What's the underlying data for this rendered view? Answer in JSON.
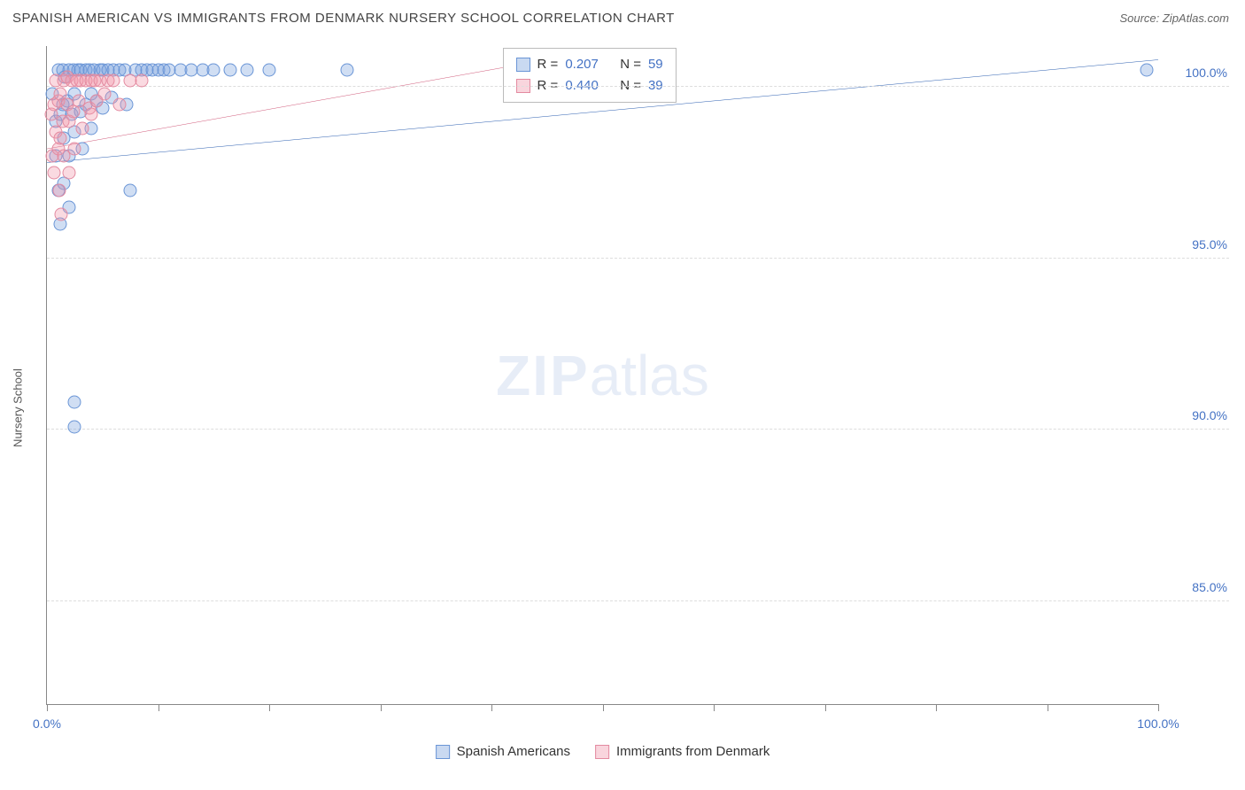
{
  "header": {
    "title": "SPANISH AMERICAN VS IMMIGRANTS FROM DENMARK NURSERY SCHOOL CORRELATION CHART",
    "source": "Source: ZipAtlas.com"
  },
  "chart": {
    "type": "scatter",
    "ylabel": "Nursery School",
    "xlim": [
      0,
      100
    ],
    "ylim": [
      82,
      101.2
    ],
    "yticks": [
      {
        "value": 100,
        "label": "100.0%"
      },
      {
        "value": 95,
        "label": "95.0%"
      },
      {
        "value": 90,
        "label": "90.0%"
      },
      {
        "value": 85,
        "label": "85.0%"
      }
    ],
    "xtick_positions": [
      0,
      10,
      20,
      30,
      40,
      50,
      60,
      70,
      80,
      90,
      100
    ],
    "xtick_labels": [
      {
        "value": 0,
        "label": "0.0%"
      },
      {
        "value": 100,
        "label": "100.0%"
      }
    ],
    "background_color": "#ffffff",
    "grid_color": "#dddddd",
    "axis_color": "#888888",
    "label_fontsize": 14,
    "series": [
      {
        "name": "Spanish Americans",
        "color_fill": "rgba(120,160,220,0.35)",
        "color_stroke": "#6a95d6",
        "marker_size": 15,
        "r": "0.207",
        "n": "59",
        "trend": {
          "x0": 0,
          "y0": 97.8,
          "x1": 100,
          "y1": 100.8,
          "color": "#2a5db0",
          "width": 2
        },
        "points": [
          [
            0.5,
            99.8
          ],
          [
            0.8,
            99.0
          ],
          [
            0.8,
            98.0
          ],
          [
            1.0,
            100.5
          ],
          [
            1.0,
            97.0
          ],
          [
            1.2,
            99.2
          ],
          [
            1.2,
            96.0
          ],
          [
            1.4,
            100.5
          ],
          [
            1.4,
            99.5
          ],
          [
            1.5,
            98.5
          ],
          [
            1.5,
            97.2
          ],
          [
            1.6,
            100.3
          ],
          [
            1.8,
            99.6
          ],
          [
            2.0,
            100.5
          ],
          [
            2.0,
            98.0
          ],
          [
            2.0,
            96.5
          ],
          [
            2.2,
            99.2
          ],
          [
            2.4,
            100.5
          ],
          [
            2.5,
            99.8
          ],
          [
            2.5,
            98.7
          ],
          [
            2.8,
            100.5
          ],
          [
            3.0,
            99.3
          ],
          [
            3.0,
            100.5
          ],
          [
            3.2,
            98.2
          ],
          [
            3.5,
            100.5
          ],
          [
            3.5,
            99.5
          ],
          [
            3.8,
            100.5
          ],
          [
            4.0,
            99.8
          ],
          [
            4.0,
            98.8
          ],
          [
            4.2,
            100.5
          ],
          [
            4.5,
            99.6
          ],
          [
            4.8,
            100.5
          ],
          [
            5.0,
            99.4
          ],
          [
            5.0,
            100.5
          ],
          [
            5.5,
            100.5
          ],
          [
            5.8,
            99.7
          ],
          [
            6.0,
            100.5
          ],
          [
            6.5,
            100.5
          ],
          [
            7.0,
            100.5
          ],
          [
            7.2,
            99.5
          ],
          [
            7.5,
            97.0
          ],
          [
            8.0,
            100.5
          ],
          [
            8.5,
            100.5
          ],
          [
            9.0,
            100.5
          ],
          [
            9.5,
            100.5
          ],
          [
            10.0,
            100.5
          ],
          [
            10.5,
            100.5
          ],
          [
            11.0,
            100.5
          ],
          [
            12.0,
            100.5
          ],
          [
            13.0,
            100.5
          ],
          [
            14.0,
            100.5
          ],
          [
            15.0,
            100.5
          ],
          [
            16.5,
            100.5
          ],
          [
            18.0,
            100.5
          ],
          [
            20.0,
            100.5
          ],
          [
            27.0,
            100.5
          ],
          [
            2.5,
            90.8
          ],
          [
            2.5,
            90.1
          ],
          [
            99.0,
            100.5
          ]
        ]
      },
      {
        "name": "Immigrants from Denmark",
        "color_fill": "rgba(240,150,170,0.35)",
        "color_stroke": "#e38aa0",
        "marker_size": 15,
        "r": "0.440",
        "n": "39",
        "trend": {
          "x0": 0,
          "y0": 98.2,
          "x1": 45,
          "y1": 100.8,
          "color": "#d05a7a",
          "width": 2
        },
        "points": [
          [
            0.4,
            99.2
          ],
          [
            0.5,
            98.0
          ],
          [
            0.6,
            99.5
          ],
          [
            0.6,
            97.5
          ],
          [
            0.8,
            100.2
          ],
          [
            0.8,
            98.7
          ],
          [
            1.0,
            99.6
          ],
          [
            1.0,
            98.2
          ],
          [
            1.1,
            97.0
          ],
          [
            1.2,
            99.8
          ],
          [
            1.2,
            98.5
          ],
          [
            1.3,
            96.3
          ],
          [
            1.4,
            99.0
          ],
          [
            1.5,
            100.2
          ],
          [
            1.5,
            98.0
          ],
          [
            1.8,
            99.5
          ],
          [
            1.8,
            100.3
          ],
          [
            2.0,
            99.0
          ],
          [
            2.0,
            97.5
          ],
          [
            2.2,
            100.2
          ],
          [
            2.4,
            99.3
          ],
          [
            2.5,
            98.2
          ],
          [
            2.7,
            100.2
          ],
          [
            2.9,
            99.6
          ],
          [
            3.0,
            100.2
          ],
          [
            3.2,
            98.8
          ],
          [
            3.5,
            100.2
          ],
          [
            3.8,
            99.4
          ],
          [
            4.0,
            100.2
          ],
          [
            4.0,
            99.2
          ],
          [
            4.3,
            100.2
          ],
          [
            4.5,
            99.6
          ],
          [
            4.8,
            100.2
          ],
          [
            5.2,
            99.8
          ],
          [
            5.5,
            100.2
          ],
          [
            6.0,
            100.2
          ],
          [
            6.5,
            99.5
          ],
          [
            7.5,
            100.2
          ],
          [
            8.5,
            100.2
          ]
        ]
      }
    ],
    "legend_box": {
      "rows": [
        {
          "swatch": "blue",
          "r_label": "R  =",
          "r_value": "0.207",
          "n_label": "N  =",
          "n_value": "59"
        },
        {
          "swatch": "pink",
          "r_label": "R  =",
          "r_value": "0.440",
          "n_label": "N  =",
          "n_value": "39"
        }
      ]
    },
    "bottom_legend": [
      {
        "swatch": "blue",
        "label": "Spanish Americans"
      },
      {
        "swatch": "pink",
        "label": "Immigrants from Denmark"
      }
    ],
    "watermark": {
      "bold": "ZIP",
      "rest": "atlas"
    }
  }
}
